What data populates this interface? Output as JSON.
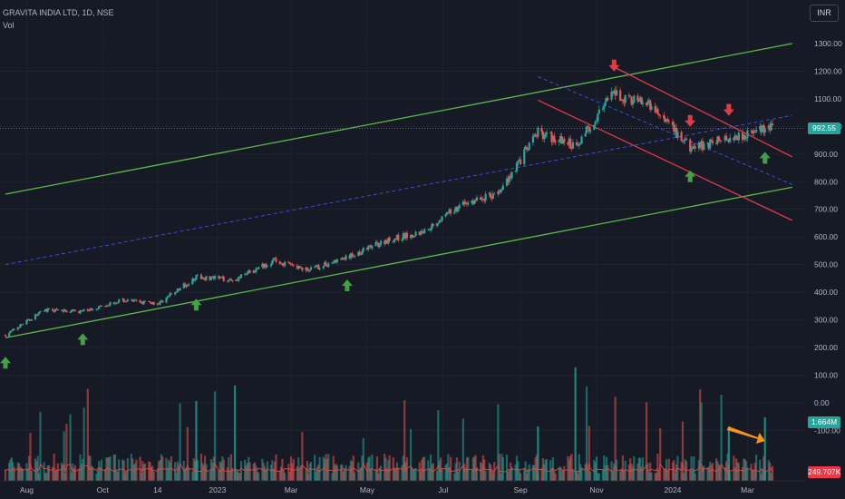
{
  "header": {
    "symbol_line": "GRAVITA INDIA LTD, 1D, NSE",
    "indicator": "Vol"
  },
  "currency_button": "INR",
  "price_tag": {
    "label": "992.55",
    "color": "#26a69a"
  },
  "volume_tag": {
    "label": "1.664M",
    "color": "#26a69a"
  },
  "volume_ma_tag": {
    "label": "249.707K",
    "color": "#f23645"
  },
  "colors": {
    "background": "#161a25",
    "up": "#26a69a",
    "down": "#ef5350",
    "channel_green": "#5cb84c",
    "channel_red": "#e03a4e",
    "midline_blue": "#3f51e8",
    "arrow_green": "#43a047",
    "arrow_red": "#e53948",
    "arrow_orange": "#f7931a",
    "volume_ma": "#d84a4a"
  },
  "chart_data": {
    "type": "candlestick",
    "title": "GRAVITA INDIA LTD, 1D, NSE",
    "price_axis": {
      "ticks": [
        "1300.00",
        "1200.00",
        "1100.00",
        "1000.00",
        "900.00",
        "800.00",
        "700.00",
        "600.00",
        "500.00",
        "400.00",
        "300.00",
        "200.00",
        "100.00",
        "0.00",
        "-100.00"
      ],
      "range": [
        -130,
        1340
      ]
    },
    "time_axis": {
      "ticks": [
        "Aug",
        "Oct",
        "14",
        "2023",
        "Mar",
        "May",
        "Jul",
        "Sep",
        "Nov",
        "2024",
        "Mar"
      ]
    },
    "last_price": 992.55,
    "monthly_closes": [
      {
        "month": "2022-07",
        "close": 245
      },
      {
        "month": "2022-08",
        "close": 335
      },
      {
        "month": "2022-09",
        "close": 330
      },
      {
        "month": "2022-10",
        "close": 370
      },
      {
        "month": "2022-11",
        "close": 360
      },
      {
        "month": "2022-12",
        "close": 455
      },
      {
        "month": "2023-01",
        "close": 445
      },
      {
        "month": "2023-02",
        "close": 515
      },
      {
        "month": "2023-03",
        "close": 480
      },
      {
        "month": "2023-04",
        "close": 525
      },
      {
        "month": "2023-05",
        "close": 585
      },
      {
        "month": "2023-06",
        "close": 620
      },
      {
        "month": "2023-07",
        "close": 715
      },
      {
        "month": "2023-08",
        "close": 760
      },
      {
        "month": "2023-09",
        "close": 980
      },
      {
        "month": "2023-10",
        "close": 930
      },
      {
        "month": "2023-11",
        "close": 1120
      },
      {
        "month": "2023-12",
        "close": 1070
      },
      {
        "month": "2024-01",
        "close": 920
      },
      {
        "month": "2024-02",
        "close": 960
      },
      {
        "month": "2024-03",
        "close": 992.55
      }
    ],
    "volume": {
      "last": "1.664M",
      "ma": "249.707K"
    },
    "trendlines": [
      {
        "name": "ascending channel upper",
        "color": "green",
        "from": {
          "date": "2022-07",
          "price": 755
        },
        "to": {
          "date": "2024-03",
          "price": 1300
        }
      },
      {
        "name": "ascending channel lower",
        "color": "green",
        "from": {
          "date": "2022-07",
          "price": 235
        },
        "to": {
          "date": "2024-03",
          "price": 780
        }
      },
      {
        "name": "ascending channel median",
        "color": "blue",
        "style": "dashed",
        "from": {
          "date": "2022-07",
          "price": 500
        },
        "to": {
          "date": "2024-03",
          "price": 1040
        }
      },
      {
        "name": "falling channel upper",
        "color": "red",
        "from": {
          "date": "2023-11",
          "price": 1215
        },
        "to": {
          "date": "2024-03",
          "price": 890
        }
      },
      {
        "name": "falling channel lower",
        "color": "red",
        "from": {
          "date": "2023-09",
          "price": 1095
        },
        "to": {
          "date": "2024-03",
          "price": 660
        }
      },
      {
        "name": "falling channel median",
        "color": "blue",
        "style": "dashed",
        "from": {
          "date": "2023-09",
          "price": 1180
        },
        "to": {
          "date": "2024-03",
          "price": 790
        }
      }
    ],
    "markers": [
      {
        "type": "up-arrow",
        "color": "green",
        "date": "2022-07"
      },
      {
        "type": "up-arrow",
        "color": "green",
        "date": "2022-09"
      },
      {
        "type": "up-arrow",
        "color": "green",
        "date": "2022-12"
      },
      {
        "type": "up-arrow",
        "color": "green",
        "date": "2023-04"
      },
      {
        "type": "up-arrow",
        "color": "green",
        "date": "2024-01"
      },
      {
        "type": "up-arrow",
        "color": "green",
        "date": "2024-03"
      },
      {
        "type": "down-arrow",
        "color": "red",
        "date": "2023-11"
      },
      {
        "type": "down-arrow",
        "color": "red",
        "date": "2024-01"
      },
      {
        "type": "down-arrow",
        "color": "red",
        "date": "2024-02"
      },
      {
        "type": "arrow",
        "color": "orange",
        "date": "2024-03",
        "points_to": "volume spike"
      }
    ],
    "grid": true
  }
}
